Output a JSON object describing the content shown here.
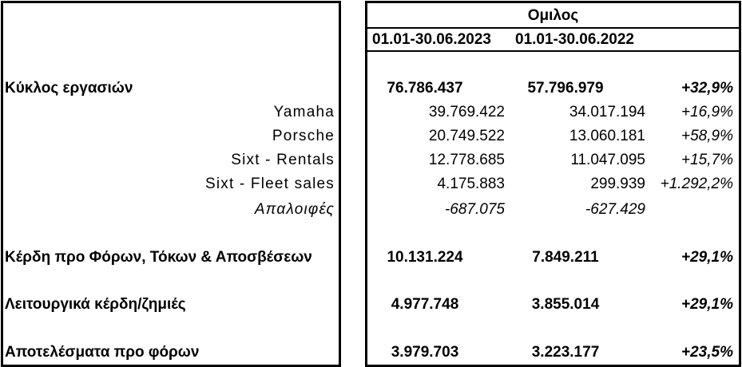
{
  "header": {
    "group": "Ομιλος",
    "period_2023": "01.01-30.06.2023",
    "period_2022": "01.01-30.06.2022"
  },
  "rows": [
    {
      "label": "Κύκλος εργασιών",
      "v2023": "76.786.437",
      "v2022": "57.796.979",
      "change": "+32,9%"
    },
    {
      "label": "Yamaha",
      "v2023": "39.769.422",
      "v2022": "34.017.194",
      "change": "+16,9%"
    },
    {
      "label": "Porsche",
      "v2023": "20.749.522",
      "v2022": "13.060.181",
      "change": "+58,9%"
    },
    {
      "label": "Sixt - Rentals",
      "v2023": "12.778.685",
      "v2022": "11.047.095",
      "change": "+15,7%"
    },
    {
      "label": "Sixt - Fleet sales",
      "v2023": "4.175.883",
      "v2022": "299.939",
      "change": "+1.292,2%"
    },
    {
      "label": "Απαλοιφές",
      "v2023": "-687.075",
      "v2022": "-627.429",
      "change": ""
    },
    {
      "label": "Κέρδη προ Φόρων, Τόκων & Αποσβέσεων",
      "v2023": "10.131.224",
      "v2022": "7.849.211",
      "change": "+29,1%"
    },
    {
      "label": "Λειτουργικά κέρδη/ζημιές",
      "v2023": "4.977.748",
      "v2022": "3.855.014",
      "change": "+29,1%"
    },
    {
      "label": "Αποτελέσματα προ φόρων",
      "v2023": "3.979.703",
      "v2022": "3.223.177",
      "change": "+23,5%"
    }
  ]
}
